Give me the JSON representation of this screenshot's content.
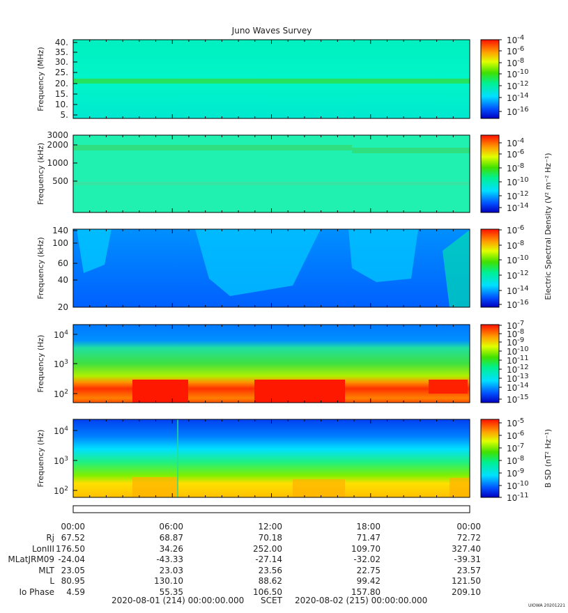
{
  "title": "Juno Waves Survey",
  "panels": [
    {
      "ylabel": "Frequency (MHz)",
      "yticks": [
        "40.",
        "35.",
        "30.",
        "25.",
        "20.",
        "15.",
        "10.",
        "5."
      ],
      "colorbar_ticks": [
        "-4",
        "-6",
        "-8",
        "-10",
        "-12",
        "-14",
        "-16"
      ]
    },
    {
      "ylabel": "Frequency (kHz)",
      "yticks": [
        "3000",
        "2000",
        "1000",
        "500"
      ],
      "colorbar_ticks": [
        "-4",
        "-6",
        "-8",
        "-10",
        "-12",
        "-14"
      ]
    },
    {
      "ylabel": "Frequency (kHz)",
      "yticks": [
        "140",
        "100",
        "60",
        "40",
        "20"
      ],
      "colorbar_ticks": [
        "-6",
        "-8",
        "-10",
        "-12",
        "-14",
        "-16"
      ]
    },
    {
      "ylabel": "Frequency (Hz)",
      "yticks": [
        "4",
        "3",
        "2"
      ],
      "colorbar_ticks": [
        "-7",
        "-8",
        "-9",
        "-10",
        "-11",
        "-12",
        "-13",
        "-14",
        "-15"
      ]
    },
    {
      "ylabel": "Frequency (Hz)",
      "yticks": [
        "4",
        "3",
        "2"
      ],
      "colorbar_ticks": [
        "-5",
        "-6",
        "-7",
        "-8",
        "-9",
        "-10",
        "-11"
      ]
    }
  ],
  "colorbar_label_e": "Electric Spectral Density (V² m⁻² Hz⁻¹)",
  "colorbar_label_b": "B SD (nT² Hz⁻¹)",
  "time_labels": [
    "00:00",
    "06:00",
    "12:00",
    "18:00",
    "00:00"
  ],
  "ephemeris": [
    {
      "name": "Rj",
      "values": [
        "67.52",
        "68.87",
        "70.18",
        "71.47",
        "72.72"
      ]
    },
    {
      "name": "LonIII",
      "values": [
        "176.50",
        "34.26",
        "252.00",
        "109.70",
        "327.40"
      ]
    },
    {
      "name": "MLatJRM09",
      "values": [
        "-24.04",
        "-43.33",
        "-27.14",
        "-32.02",
        "-39.31"
      ]
    },
    {
      "name": "MLT",
      "values": [
        "23.05",
        "23.03",
        "23.56",
        "22.75",
        "23.57"
      ]
    },
    {
      "name": "L",
      "values": [
        "80.95",
        "130.10",
        "88.62",
        "99.42",
        "121.50"
      ]
    },
    {
      "name": "Io Phase",
      "values": [
        "4.59",
        "55.35",
        "106.50",
        "157.80",
        "209.10"
      ]
    }
  ],
  "footer": {
    "start": "2020-08-01 (214) 00:00:00.000",
    "mid": "SCET",
    "end": "2020-08-02 (215) 00:00:00.000"
  },
  "footnote": "UIOWA 20201221",
  "chart_data": {
    "type": "heatmap",
    "title": "Juno Waves Survey",
    "x_range": [
      "2020-08-01 00:00",
      "2020-08-02 00:00"
    ],
    "panels": [
      {
        "ylabel": "Frequency (MHz)",
        "ylim": [
          3,
          41
        ],
        "colorbar": "10^-16 to 10^-4"
      },
      {
        "ylabel": "Frequency (kHz)",
        "ylim": [
          100,
          3000
        ],
        "colorbar": "10^-14 to 10^-4"
      },
      {
        "ylabel": "Frequency (kHz)",
        "ylim": [
          20,
          140
        ],
        "colorbar": "10^-16 to 10^-6"
      },
      {
        "ylabel": "Frequency (Hz)",
        "ylim": [
          50,
          20000
        ],
        "yscale": "log",
        "colorbar": "10^-15 to 10^-7"
      },
      {
        "ylabel": "Frequency (Hz)",
        "ylim": [
          50,
          20000
        ],
        "yscale": "log",
        "colorbar": "10^-11 to 10^-5"
      }
    ]
  }
}
